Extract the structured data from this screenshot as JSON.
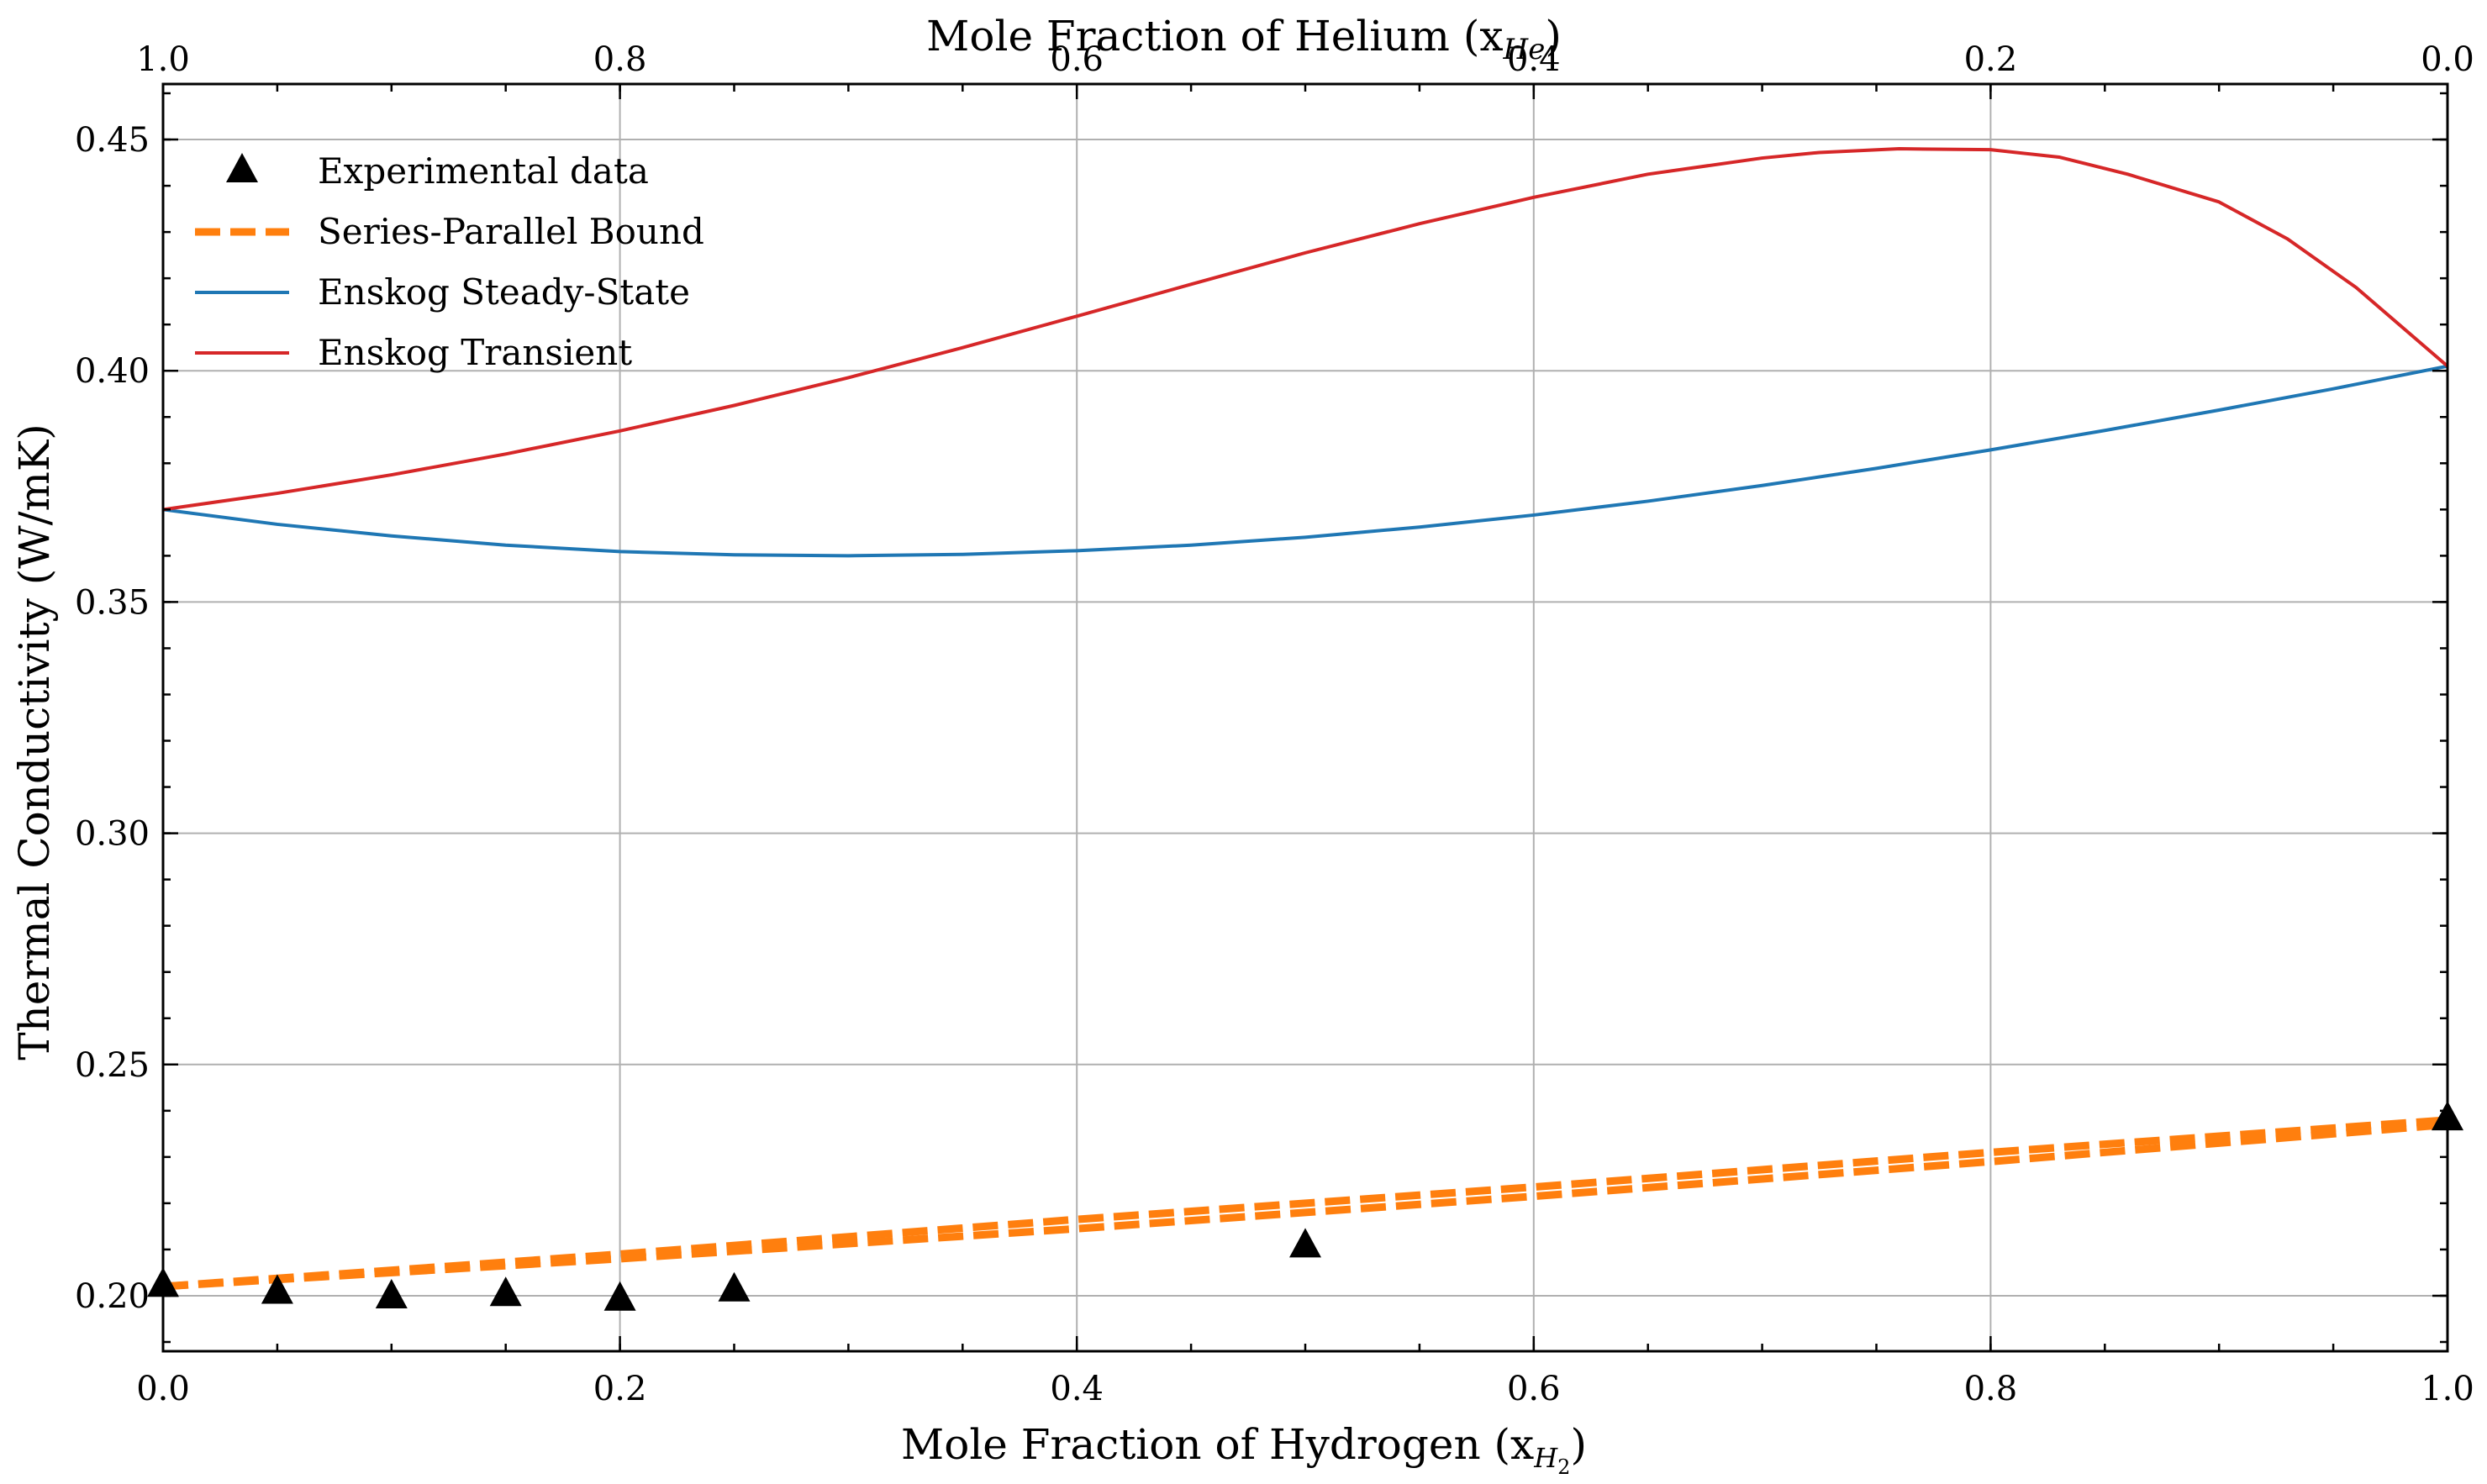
{
  "chart_data": {
    "type": "line",
    "xlabel": "Mole Fraction of Hydrogen",
    "xlabel_math": "(x",
    "xlabel_sub": "H",
    "xlabel_subsub": "2",
    "xlabel_close": ")",
    "x2label": "Mole Fraction of Helium",
    "x2label_math": "(x",
    "x2label_sub": "He",
    "x2label_close": ")",
    "ylabel": "Thermal Conductivity (W/mK)",
    "xlim": [
      0.0,
      1.0
    ],
    "ylim": [
      0.188,
      0.462
    ],
    "x_ticks": [
      "0.0",
      "0.2",
      "0.4",
      "0.6",
      "0.8",
      "1.0"
    ],
    "x2_ticks": [
      "1.0",
      "0.8",
      "0.6",
      "0.4",
      "0.2",
      "0.0"
    ],
    "y_ticks": [
      "0.20",
      "0.25",
      "0.30",
      "0.35",
      "0.40",
      "0.45"
    ],
    "grid": true,
    "legend_position": "top-left",
    "series": [
      {
        "name": "Experimental data",
        "kind": "marker",
        "color": "#000000",
        "x": [
          0.0,
          0.05,
          0.1,
          0.15,
          0.2,
          0.25,
          0.5,
          1.0
        ],
        "y": [
          0.2025,
          0.201,
          0.2,
          0.2005,
          0.1995,
          0.2015,
          0.211,
          0.2385
        ]
      },
      {
        "name": "Series-Parallel Bound",
        "kind": "dashed-band",
        "color": "#ff7f0e",
        "x": [
          0.0,
          0.2,
          0.4,
          0.6,
          0.8,
          1.0
        ],
        "y_upper": [
          0.202,
          0.209,
          0.2165,
          0.2235,
          0.231,
          0.238
        ],
        "y_lower": [
          0.202,
          0.208,
          0.2145,
          0.2215,
          0.229,
          0.237
        ]
      },
      {
        "name": "Enskog Steady-State",
        "kind": "line",
        "color": "#1f77b4",
        "x": [
          0.0,
          0.05,
          0.1,
          0.15,
          0.2,
          0.25,
          0.3,
          0.35,
          0.4,
          0.45,
          0.5,
          0.55,
          0.6,
          0.65,
          0.7,
          0.75,
          0.8,
          0.85,
          0.9,
          0.95,
          1.0
        ],
        "y": [
          0.37,
          0.3668,
          0.3643,
          0.3623,
          0.3609,
          0.3602,
          0.36,
          0.3603,
          0.3611,
          0.3623,
          0.364,
          0.3662,
          0.3688,
          0.3718,
          0.3752,
          0.3789,
          0.3829,
          0.3871,
          0.3915,
          0.3961,
          0.401
        ]
      },
      {
        "name": "Enskog Transient",
        "kind": "line",
        "color": "#d62728",
        "x": [
          0.0,
          0.05,
          0.1,
          0.15,
          0.2,
          0.25,
          0.3,
          0.35,
          0.4,
          0.45,
          0.5,
          0.55,
          0.6,
          0.65,
          0.7,
          0.725,
          0.76,
          0.8,
          0.83,
          0.86,
          0.9,
          0.93,
          0.96,
          1.0
        ],
        "y": [
          0.37,
          0.3735,
          0.3775,
          0.382,
          0.387,
          0.3925,
          0.3985,
          0.405,
          0.4118,
          0.4187,
          0.4255,
          0.4318,
          0.4375,
          0.4425,
          0.446,
          0.4472,
          0.448,
          0.4478,
          0.4462,
          0.4425,
          0.4365,
          0.4285,
          0.418,
          0.401
        ]
      }
    ]
  }
}
